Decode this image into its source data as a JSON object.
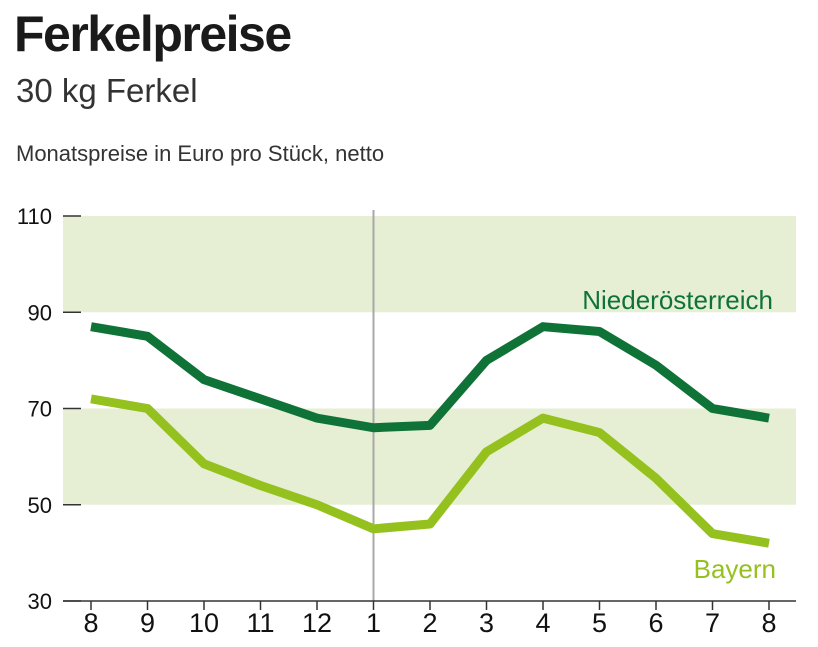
{
  "title": "Ferkelpreise",
  "subtitle": "30 kg Ferkel",
  "description": "Monatspreise in Euro pro Stück, netto",
  "chart_data": {
    "type": "line",
    "categories": [
      "8",
      "9",
      "10",
      "11",
      "12",
      "1",
      "2",
      "3",
      "4",
      "5",
      "6",
      "7",
      "8"
    ],
    "ylim": [
      30,
      110
    ],
    "yticks": [
      "110",
      "90",
      "70",
      "50",
      "30"
    ],
    "band_color": "#e6efd4",
    "divider_after_index": 5,
    "series": [
      {
        "name": "Niederösterreich",
        "color": "#0f7337",
        "values": [
          87,
          85,
          76,
          72,
          68,
          66,
          66.5,
          80,
          87,
          86,
          79,
          70,
          68
        ]
      },
      {
        "name": "Bayern",
        "color": "#95c11f",
        "values": [
          72,
          70,
          58.5,
          54,
          50,
          45,
          46,
          61,
          68,
          65,
          55.5,
          44,
          42
        ]
      }
    ]
  }
}
